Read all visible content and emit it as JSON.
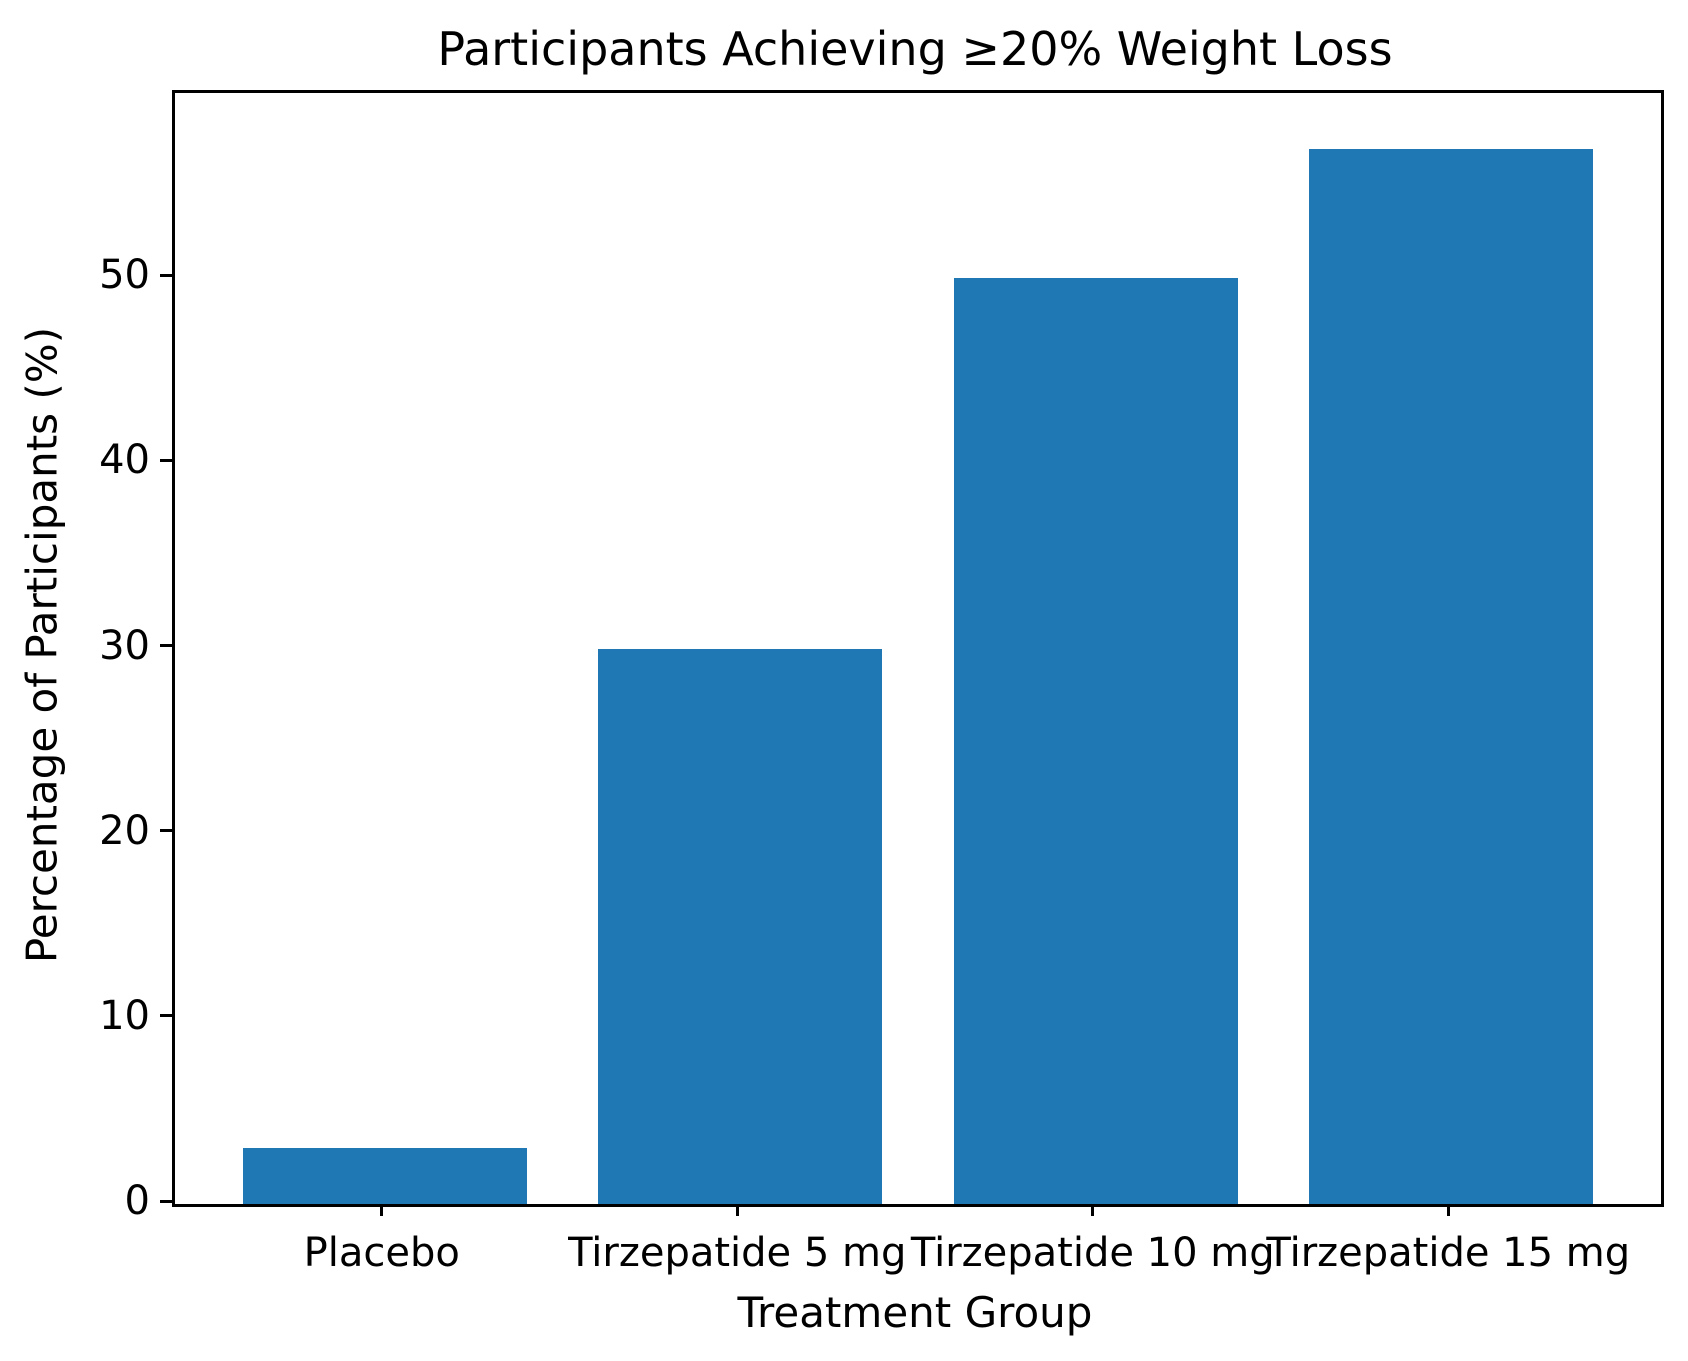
{
  "chart_data": {
    "type": "bar",
    "title": "Participants Achieving ≥20% Weight Loss",
    "xlabel": "Treatment Group",
    "ylabel": "Percentage of Participants (%)",
    "categories": [
      "Placebo",
      "Tirzepatide 5 mg",
      "Tirzepatide 10 mg",
      "Tirzepatide 15 mg"
    ],
    "values": [
      3,
      30,
      50,
      57
    ],
    "ylim": [
      0,
      60
    ],
    "yticks": [
      0,
      10,
      20,
      30,
      40,
      50
    ],
    "bar_color": "#1f77b4",
    "axis_color": "#000000",
    "grid": false,
    "legend_position": "none"
  }
}
